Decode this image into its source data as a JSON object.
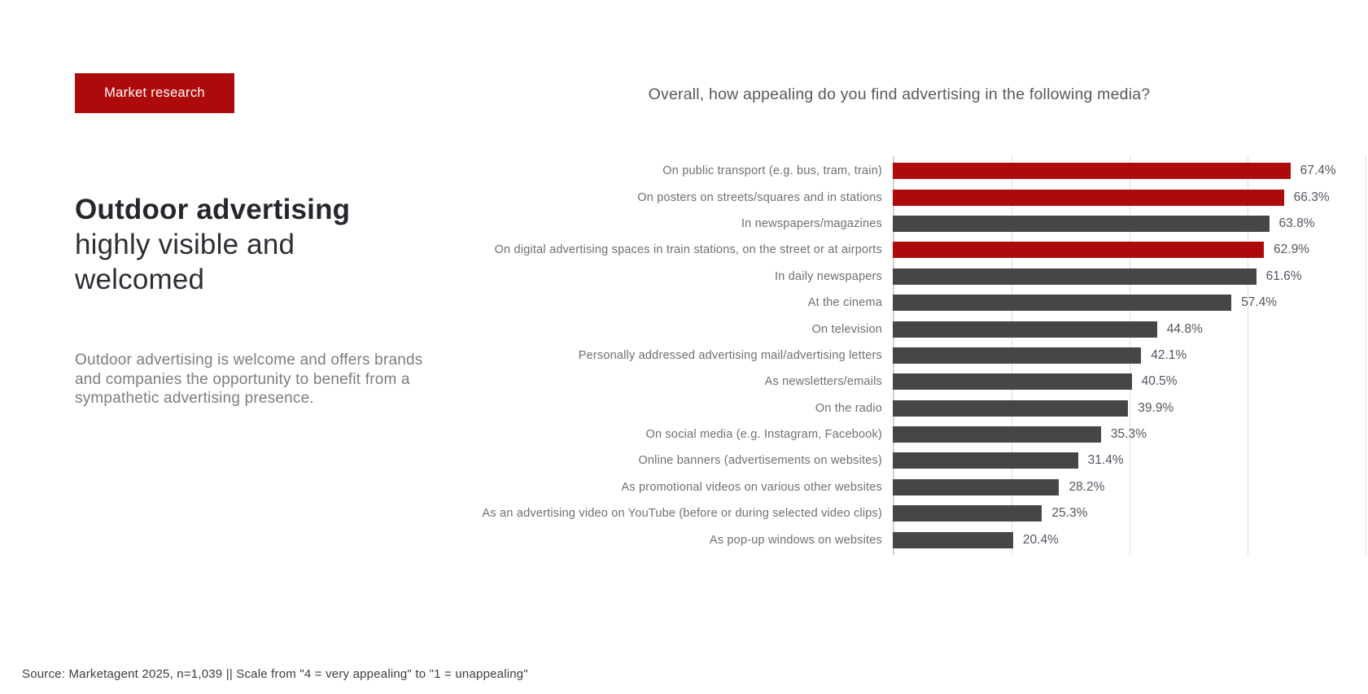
{
  "badge": {
    "label": "Market research"
  },
  "left": {
    "heading_bold": "Outdoor advertising",
    "heading_lines": [
      "highly visible and",
      "welcomed"
    ],
    "paragraph": "Outdoor advertising is welcome and offers brands and companies the opportunity to benefit from a sympathetic advertising presence."
  },
  "footer": {
    "source": "Source: Marketagent 2025, n=1,039 || Scale from \"4 = very appealing\" to \"1 = unappealing\""
  },
  "chart_data": {
    "type": "bar",
    "orientation": "horizontal",
    "title": "Overall, how appealing do you find advertising in the following media?",
    "categories": [
      "On public transport (e.g. bus, tram, train)",
      "On posters on streets/squares and in stations",
      "In newspapers/magazines",
      "On digital advertising spaces in train stations, on the street or at airports",
      "In daily newspapers",
      "At the cinema",
      "On television",
      "Personally addressed advertising mail/advertising letters",
      "As newsletters/emails",
      "On the radio",
      "On social media (e.g. Instagram, Facebook)",
      "Online banners (advertisements on websites)",
      "As promotional videos on various other websites",
      "As an advertising video on YouTube (before or during selected video clips)",
      "As pop-up windows on websites"
    ],
    "values": [
      67.4,
      66.3,
      63.8,
      62.9,
      61.6,
      57.4,
      44.8,
      42.1,
      40.5,
      39.9,
      35.3,
      31.4,
      28.2,
      25.3,
      20.4
    ],
    "value_suffix": "%",
    "xlabel": "",
    "ylabel": "",
    "xlim": [
      0,
      80
    ],
    "gridline_interval": 20,
    "grid": "vertical",
    "legend": "none",
    "highlight_indexes": [
      0,
      1,
      3
    ],
    "colors": {
      "highlight": "#ad0b0b",
      "default": "#464646"
    }
  }
}
